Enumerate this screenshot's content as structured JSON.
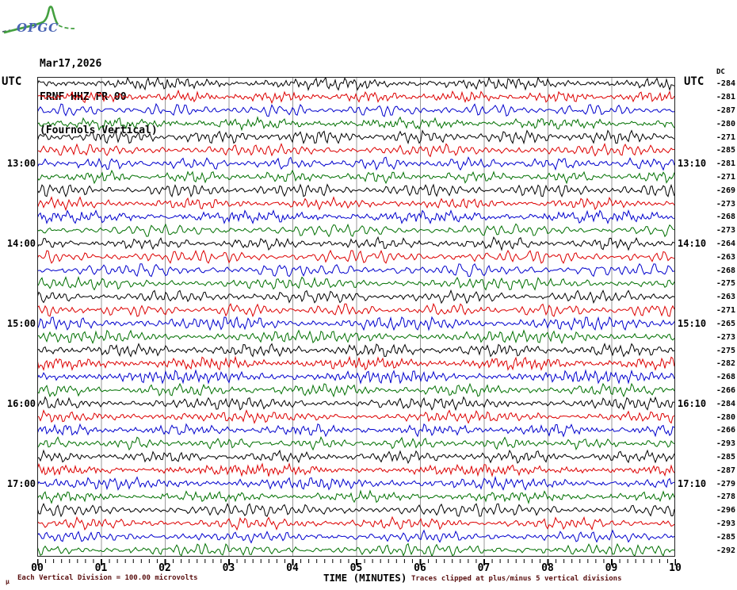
{
  "header": {
    "logo_text": "OPGC",
    "date": "Mar17,2026",
    "station_code": "FRNF HHZ FR 00",
    "station_name": "(Fournols Vertical)"
  },
  "axes": {
    "utc_left_header": "UTC",
    "utc_right_header": "UTC",
    "dc_column_header": "DC",
    "x_axis_title": "TIME (MINUTES)"
  },
  "footer": {
    "micro_glyph": "μ",
    "scale_note": "Each Vertical Division =  100.00 microvolts",
    "clip_note": "Traces clipped at plus/minus 5 vertical divisions"
  },
  "colors": {
    "trace_cycle": [
      "#000000",
      "#dd0000",
      "#0000cd",
      "#007000"
    ],
    "grid": "#999999",
    "frame": "#222222",
    "footer_note": "#5a1010",
    "logo_green": "#44a040",
    "logo_blue": "#4a64b4",
    "text": "#000000"
  },
  "chart_data": {
    "type": "line",
    "subtype": "helicorder-seismogram",
    "title": "FRNF HHZ FR 00 (Fournols Vertical) Mar17,2026",
    "xlabel": "TIME (MINUTES)",
    "x_range_minutes": [
      0,
      10
    ],
    "x_tick_labels": [
      "00",
      "01",
      "02",
      "03",
      "04",
      "05",
      "06",
      "07",
      "08",
      "09",
      "10"
    ],
    "x_minor_divisions_per_minute": 8,
    "minutes_per_row": 10,
    "grid": true,
    "legend": false,
    "trace_color_cycle": [
      "#000000",
      "#dd0000",
      "#0000cd",
      "#007000"
    ],
    "rows": [
      {
        "dc": -284
      },
      {
        "dc": -281
      },
      {
        "dc": -287
      },
      {
        "dc": -280
      },
      {
        "dc": -271
      },
      {
        "dc": -285
      },
      {
        "utc_left": "13:00",
        "utc_right": "13:10",
        "dc": -281
      },
      {
        "dc": -271
      },
      {
        "dc": -269
      },
      {
        "dc": -273
      },
      {
        "dc": -268
      },
      {
        "dc": -273
      },
      {
        "utc_left": "14:00",
        "utc_right": "14:10",
        "dc": -264
      },
      {
        "dc": -263
      },
      {
        "dc": -268
      },
      {
        "dc": -275
      },
      {
        "dc": -263
      },
      {
        "dc": -271
      },
      {
        "utc_left": "15:00",
        "utc_right": "15:10",
        "dc": -265
      },
      {
        "dc": -273
      },
      {
        "dc": -275
      },
      {
        "dc": -282
      },
      {
        "dc": -268
      },
      {
        "dc": -266
      },
      {
        "utc_left": "16:00",
        "utc_right": "16:10",
        "dc": -284
      },
      {
        "dc": -280
      },
      {
        "dc": -266
      },
      {
        "dc": -293
      },
      {
        "dc": -285
      },
      {
        "dc": -287
      },
      {
        "utc_left": "17:00",
        "utc_right": "17:10",
        "dc": -279
      },
      {
        "dc": -278
      },
      {
        "dc": -296
      },
      {
        "dc": -293
      },
      {
        "dc": -285
      },
      {
        "dc": -292
      }
    ]
  }
}
